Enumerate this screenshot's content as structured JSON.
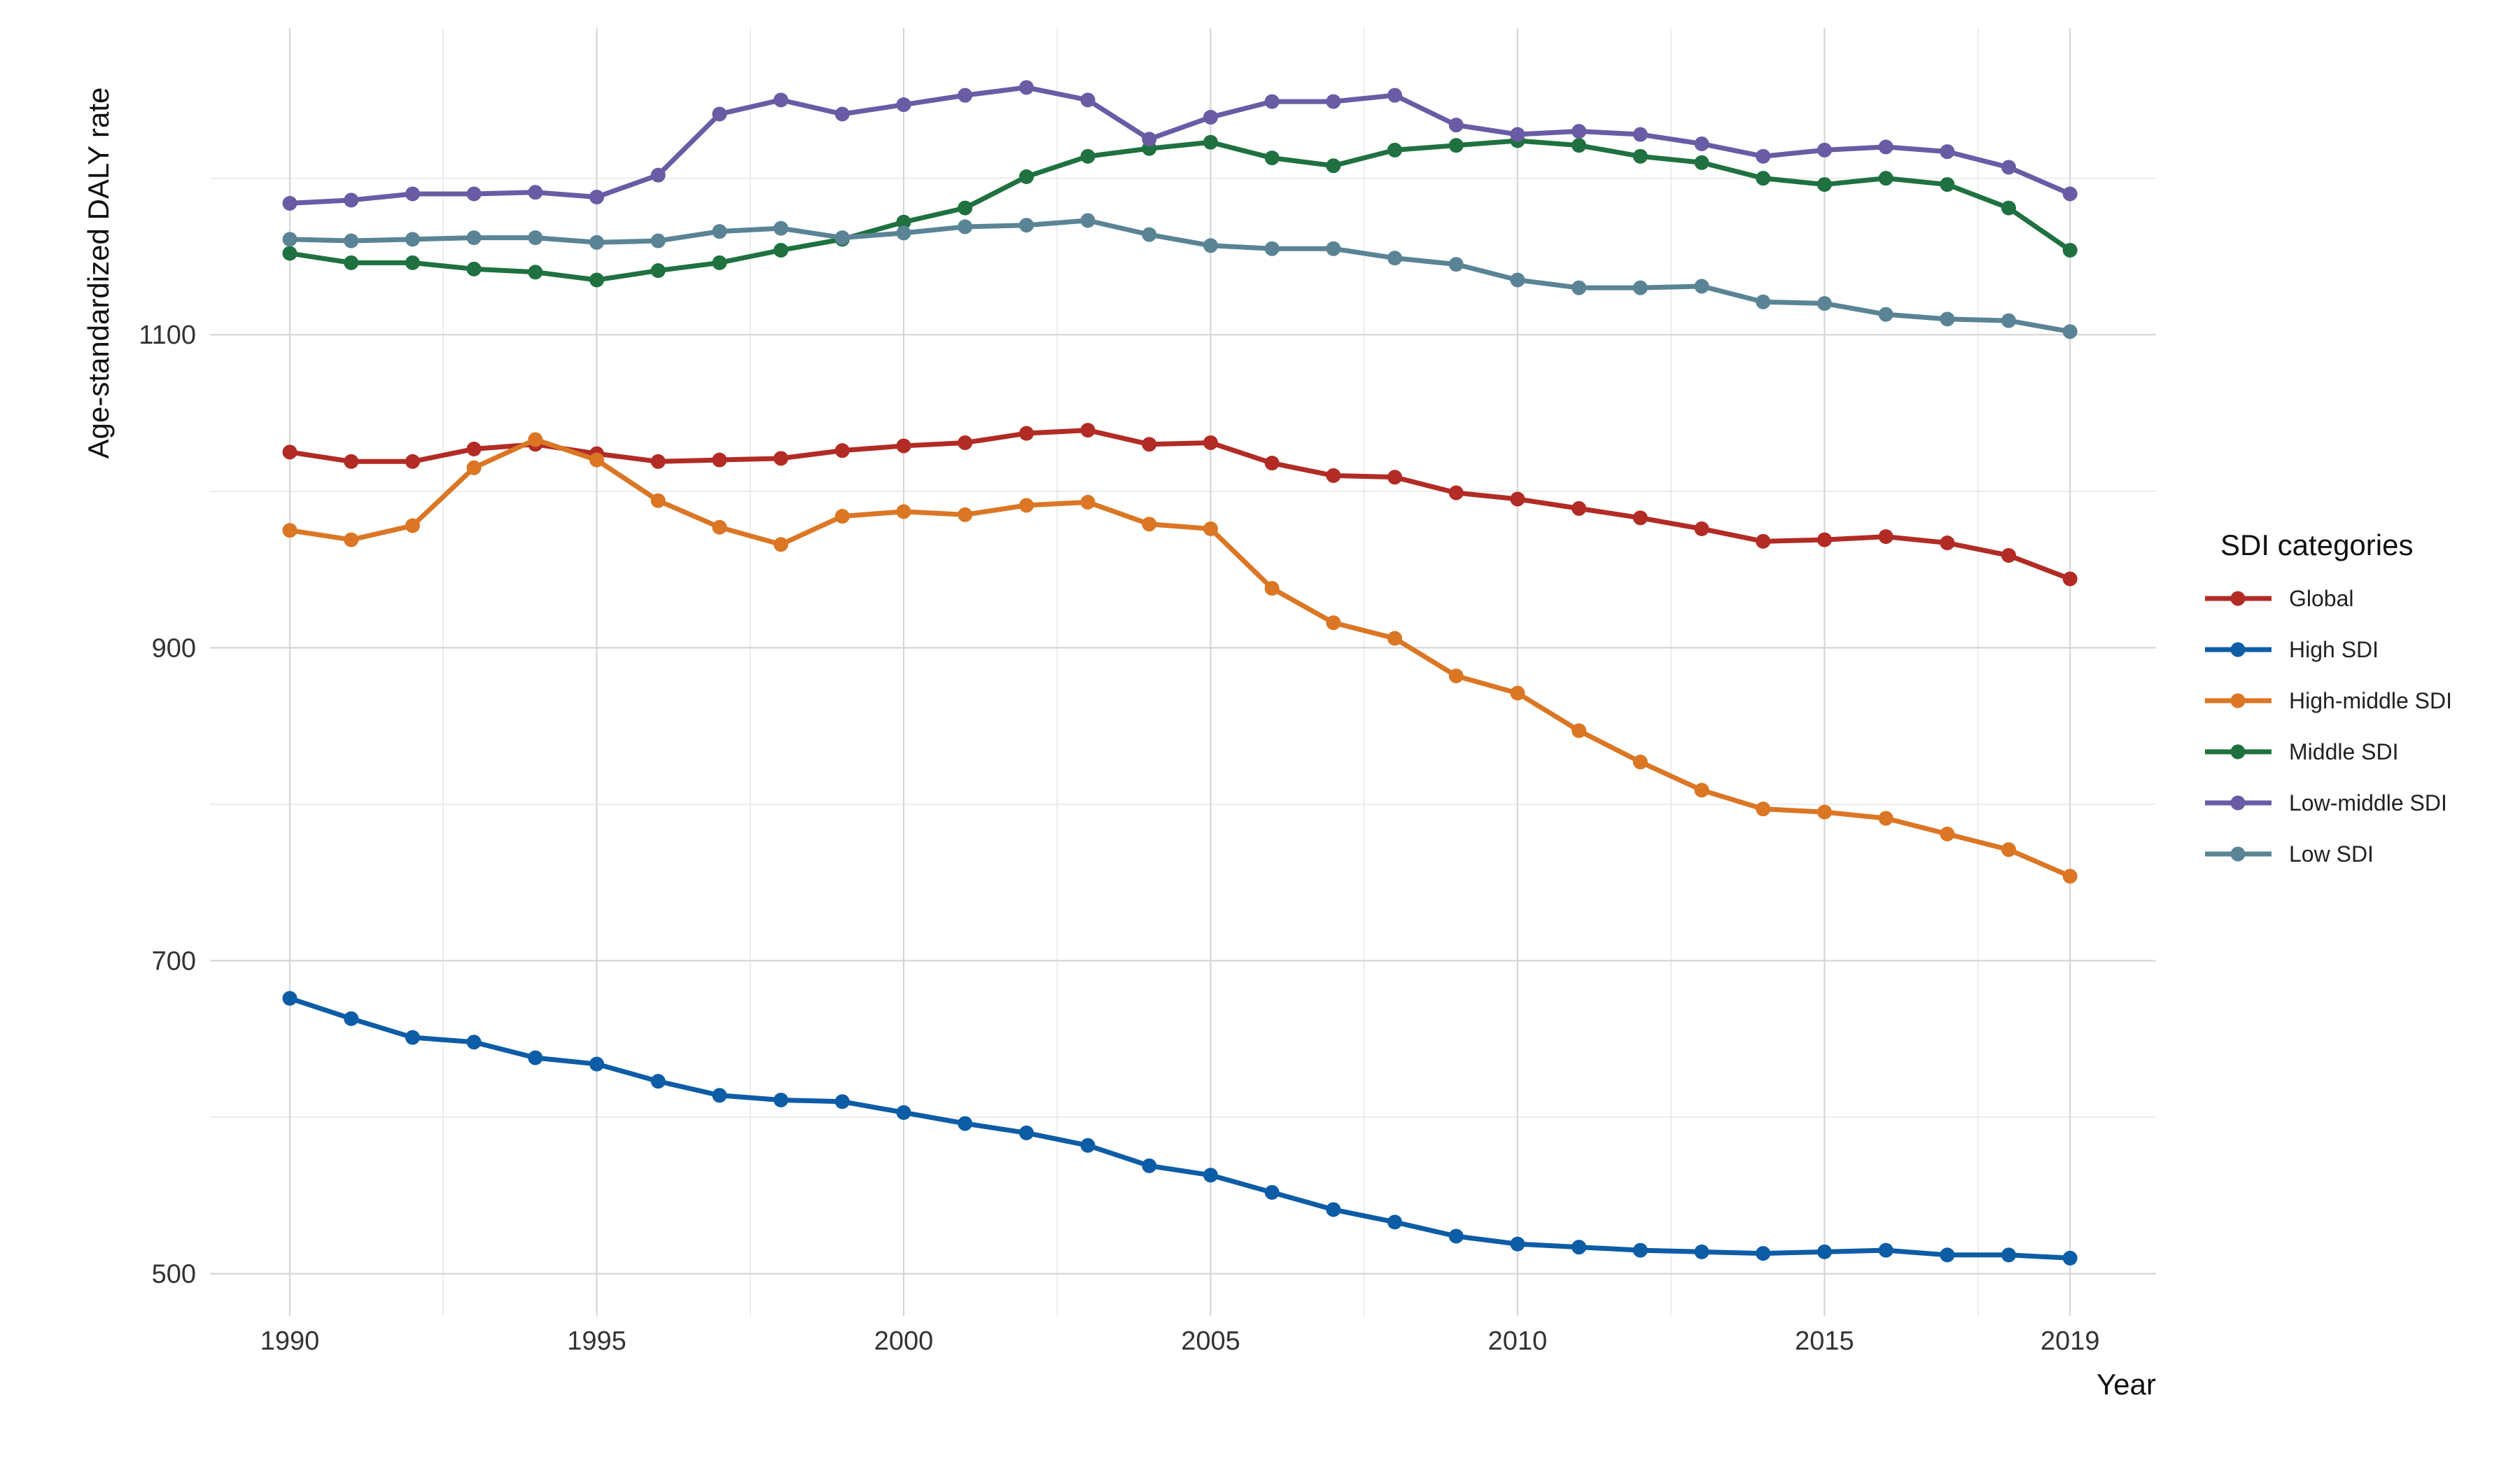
{
  "chart_data": {
    "type": "line",
    "title": "",
    "xlabel": "Year",
    "ylabel": "Age-standardized DALY rate",
    "xlim": [
      1988.7,
      2020.4
    ],
    "ylim": [
      473,
      1296
    ],
    "x_ticks": [
      1990,
      1995,
      2000,
      2005,
      2010,
      2015,
      2019
    ],
    "x_tick_labels": [
      "1990",
      "1995",
      "2000",
      "2005",
      "2010",
      "2015",
      "2019"
    ],
    "x_minor_gridlines": [
      1992.5,
      1997.5,
      2002.5,
      2007.5,
      2012.5,
      2017.5
    ],
    "y_ticks": [
      500,
      700,
      900,
      1100
    ],
    "y_tick_labels": [
      "500",
      "700",
      "900",
      "1100"
    ],
    "y_minor_gridlines": [
      600,
      800,
      1000,
      1200
    ],
    "grid": true,
    "legend": {
      "title": "SDI categories",
      "position": "right"
    },
    "x": [
      1990,
      1991,
      1992,
      1993,
      1994,
      1995,
      1996,
      1997,
      1998,
      1999,
      2000,
      2001,
      2002,
      2003,
      2004,
      2005,
      2006,
      2007,
      2008,
      2009,
      2010,
      2011,
      2012,
      2013,
      2014,
      2015,
      2016,
      2017,
      2018,
      2019
    ],
    "series": [
      {
        "name": "Global",
        "color": "#B22B25",
        "values": [
          1025,
          1019,
          1019,
          1027,
          1030,
          1024,
          1019,
          1020,
          1021,
          1026,
          1029,
          1031,
          1037,
          1039,
          1030,
          1031,
          1018,
          1010,
          1009,
          999,
          995,
          989,
          983,
          976,
          968,
          969,
          971,
          967,
          959,
          944
        ]
      },
      {
        "name": "High SDI",
        "color": "#0D5CA6",
        "values": [
          676,
          663,
          651,
          648,
          638,
          634,
          623,
          614,
          611,
          610,
          603,
          596,
          590,
          582,
          569,
          563,
          552,
          541,
          533,
          524,
          519,
          517,
          515,
          514,
          513,
          514,
          515,
          512,
          512,
          510
        ]
      },
      {
        "name": "High-middle SDI",
        "color": "#DB7624",
        "values": [
          975,
          969,
          978,
          1015,
          1033,
          1020,
          994,
          977,
          966,
          984,
          987,
          985,
          991,
          993,
          979,
          976,
          938,
          916,
          906,
          882,
          871,
          847,
          827,
          809,
          797,
          795,
          791,
          781,
          771,
          754
        ]
      },
      {
        "name": "Middle SDI",
        "color": "#1F7140",
        "values": [
          1152,
          1146,
          1146,
          1142,
          1140,
          1135,
          1141,
          1146,
          1154,
          1161,
          1172,
          1181,
          1201,
          1214,
          1219,
          1223,
          1213,
          1208,
          1218,
          1221,
          1224,
          1221,
          1214,
          1210,
          1200,
          1196,
          1200,
          1196,
          1181,
          1154
        ]
      },
      {
        "name": "Low-middle SDI",
        "color": "#6A5BA5",
        "values": [
          1184,
          1186,
          1190,
          1190,
          1191,
          1188,
          1202,
          1241,
          1250,
          1241,
          1247,
          1253,
          1258,
          1250,
          1225,
          1239,
          1249,
          1249,
          1253,
          1234,
          1228,
          1230,
          1228,
          1222,
          1214,
          1218,
          1220,
          1217,
          1207,
          1190
        ]
      },
      {
        "name": "Low SDI",
        "color": "#5A8496",
        "values": [
          1161,
          1160,
          1161,
          1162,
          1162,
          1159,
          1160,
          1166,
          1168,
          1162,
          1165,
          1169,
          1170,
          1173,
          1164,
          1157,
          1155,
          1155,
          1149,
          1145,
          1135,
          1130,
          1130,
          1131,
          1121,
          1120,
          1113,
          1110,
          1109,
          1102
        ]
      }
    ]
  }
}
